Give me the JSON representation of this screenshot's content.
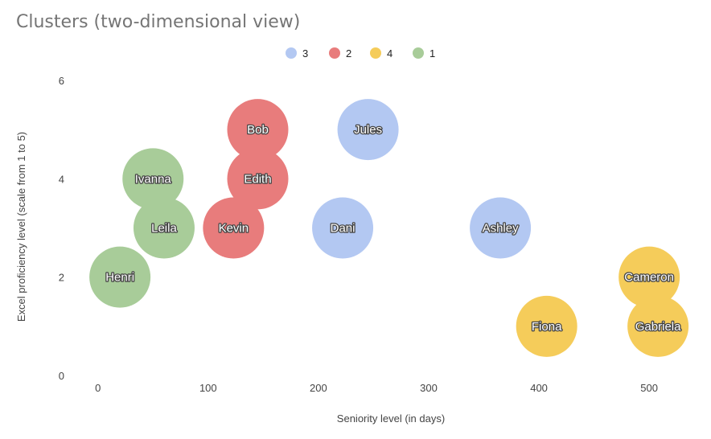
{
  "chart_data": {
    "type": "bubble",
    "title": "Clusters (two-dimensional view)",
    "xlabel": "Seniority level (in days)",
    "ylabel": "Excel proficiency level (scale from 1 to 5)",
    "xlim": [
      -10,
      540
    ],
    "ylim": [
      0,
      6
    ],
    "xticks": [
      0,
      100,
      200,
      300,
      400,
      500
    ],
    "yticks": [
      0,
      2,
      4,
      6
    ],
    "grid": false,
    "legend_position": "top",
    "series": [
      {
        "name": "3",
        "color": "#b3c8f2",
        "points": [
          {
            "label": "Jules",
            "x": 245,
            "y": 5
          },
          {
            "label": "Dani",
            "x": 222,
            "y": 3
          },
          {
            "label": "Ashley",
            "x": 365,
            "y": 3
          }
        ]
      },
      {
        "name": "2",
        "color": "#e87c7c",
        "points": [
          {
            "label": "Bob",
            "x": 145,
            "y": 5
          },
          {
            "label": "Edith",
            "x": 145,
            "y": 4
          },
          {
            "label": "Kevin",
            "x": 123,
            "y": 3
          }
        ]
      },
      {
        "name": "4",
        "color": "#f5cc5a",
        "points": [
          {
            "label": "Cameron",
            "x": 500,
            "y": 2
          },
          {
            "label": "Fiona",
            "x": 407,
            "y": 1
          },
          {
            "label": "Gabriela",
            "x": 508,
            "y": 1
          }
        ]
      },
      {
        "name": "1",
        "color": "#a8cc99",
        "points": [
          {
            "label": "Ivanna",
            "x": 50,
            "y": 4
          },
          {
            "label": "Leila",
            "x": 60,
            "y": 3
          },
          {
            "label": "Henri",
            "x": 20,
            "y": 2
          }
        ]
      }
    ]
  }
}
